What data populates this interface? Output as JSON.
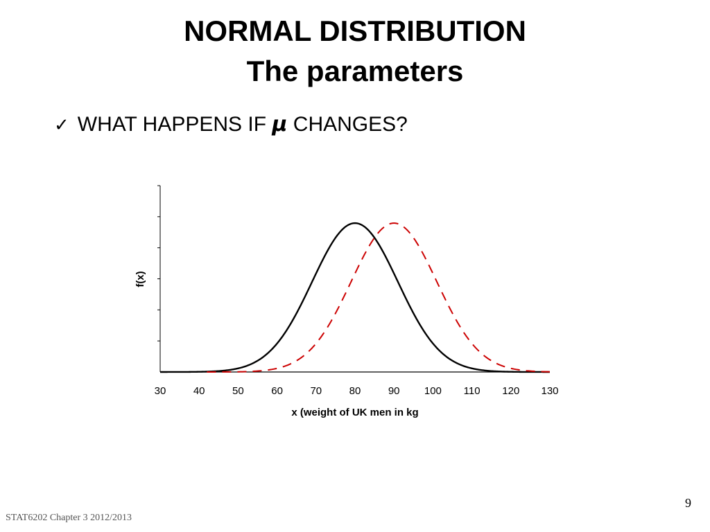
{
  "slide": {
    "title_line1": "NORMAL DISTRIBUTION",
    "title_line2": "The parameters",
    "bullet_check": "✓",
    "bullet_pre": "WHAT HAPPENS IF ",
    "bullet_mu": "μ",
    "bullet_post": " CHANGES?",
    "footer": "STAT6202  Chapter 3 2012/2013",
    "page_number": "9"
  },
  "chart_data": {
    "type": "line",
    "xlabel": "x (weight of UK men in kg",
    "ylabel": "f(x)",
    "xlim": [
      30,
      130
    ],
    "xticks": [
      30,
      40,
      50,
      60,
      70,
      80,
      90,
      100,
      110,
      120,
      130
    ],
    "ylim": [
      0,
      0.0454
    ],
    "y_ticks_count": 6,
    "grid": false,
    "legend": "none",
    "series": [
      {
        "curve": "normal",
        "mean": 80,
        "sd": 11,
        "x_range": [
          30,
          130
        ],
        "color": "#000000",
        "dash": "solid"
      },
      {
        "curve": "normal",
        "mean": 90,
        "sd": 11,
        "x_range": [
          42,
          130
        ],
        "color": "#cc0000",
        "dash": "dashed"
      }
    ]
  }
}
